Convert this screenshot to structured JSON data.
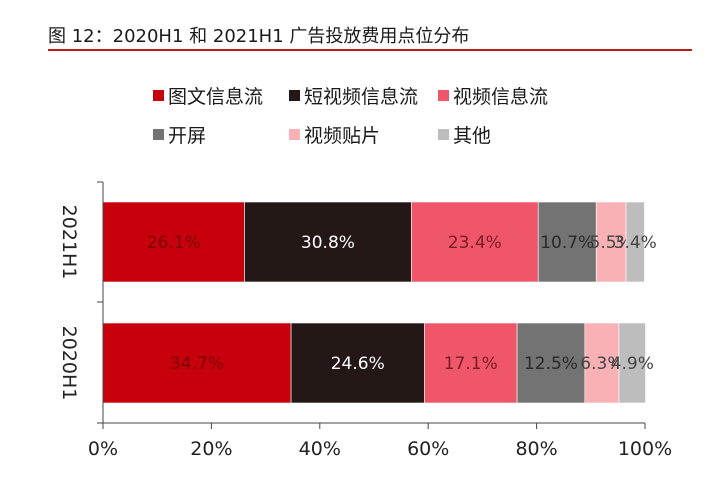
{
  "figure_title": "图 12：2020H1 和 2021H1 广告投放费用点位分布",
  "chart_data": {
    "type": "bar",
    "orientation": "horizontal",
    "stacked": true,
    "percent": true,
    "categories": [
      "2021H1",
      "2020H1"
    ],
    "series": [
      {
        "name": "图文信息流",
        "color": "#c8000b",
        "values": [
          26.1,
          34.7
        ],
        "labels": [
          "26.1%",
          "34.7%"
        ],
        "label_color": "#7a0006"
      },
      {
        "name": "短视频信息流",
        "color": "#231816",
        "values": [
          30.8,
          24.6
        ],
        "labels": [
          "30.8%",
          "24.6%"
        ],
        "label_color": "#ffffff"
      },
      {
        "name": "视频信息流",
        "color": "#f0566a",
        "values": [
          23.4,
          17.1
        ],
        "labels": [
          "23.4%",
          "17.1%"
        ],
        "label_color": "#7a1c26"
      },
      {
        "name": "开屏",
        "color": "#737373",
        "values": [
          10.7,
          12.5
        ],
        "labels": [
          "10.7%",
          "12.5%"
        ],
        "label_color": "#2a2a2a"
      },
      {
        "name": "视频贴片",
        "color": "#f9b1b5",
        "values": [
          5.5,
          6.3
        ],
        "labels": [
          "5.5%",
          "6.3%"
        ],
        "label_color": "#444444"
      },
      {
        "name": "其他",
        "color": "#bdbdbd",
        "values": [
          3.4,
          4.9
        ],
        "labels": [
          "3.4%",
          "4.9%"
        ],
        "label_color": "#444444"
      }
    ],
    "xlim": [
      0,
      100
    ],
    "xticks": [
      "0%",
      "20%",
      "40%",
      "60%",
      "80%",
      "100%"
    ],
    "legend_position": "top"
  }
}
